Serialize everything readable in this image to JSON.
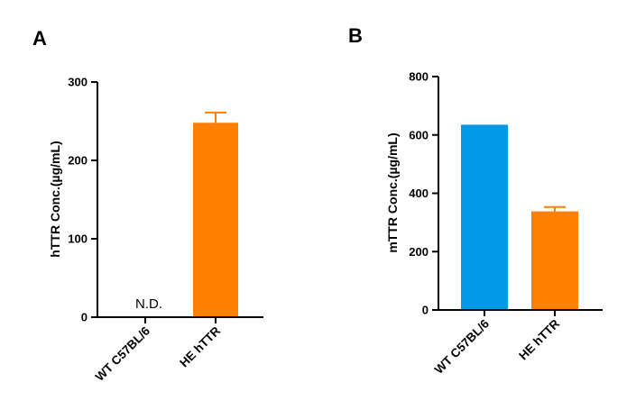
{
  "chart_data": [
    {
      "panel": "A",
      "type": "bar",
      "categories": [
        "WT C57BL/6",
        "HE hTTR"
      ],
      "values": [
        0,
        248
      ],
      "errors": [
        null,
        13
      ],
      "colors": [
        "#0099e6",
        "#ff8000"
      ],
      "annotations": [
        "N.D.",
        null
      ],
      "ylabel": "hTTR Conc.(µg/mL)",
      "xlabel": "",
      "ylim": [
        0,
        300
      ],
      "yticks": [
        0,
        100,
        200,
        300
      ]
    },
    {
      "panel": "B",
      "type": "bar",
      "categories": [
        "WT C57BL/6",
        "HE hTTR"
      ],
      "values": [
        635,
        338
      ],
      "errors": [
        null,
        15
      ],
      "colors": [
        "#0099e6",
        "#ff8000"
      ],
      "annotations": [
        null,
        null
      ],
      "ylabel": "mTTR Conc.(µg/mL)",
      "xlabel": "",
      "ylim": [
        0,
        800
      ],
      "yticks": [
        0,
        200,
        400,
        600,
        800
      ]
    }
  ]
}
